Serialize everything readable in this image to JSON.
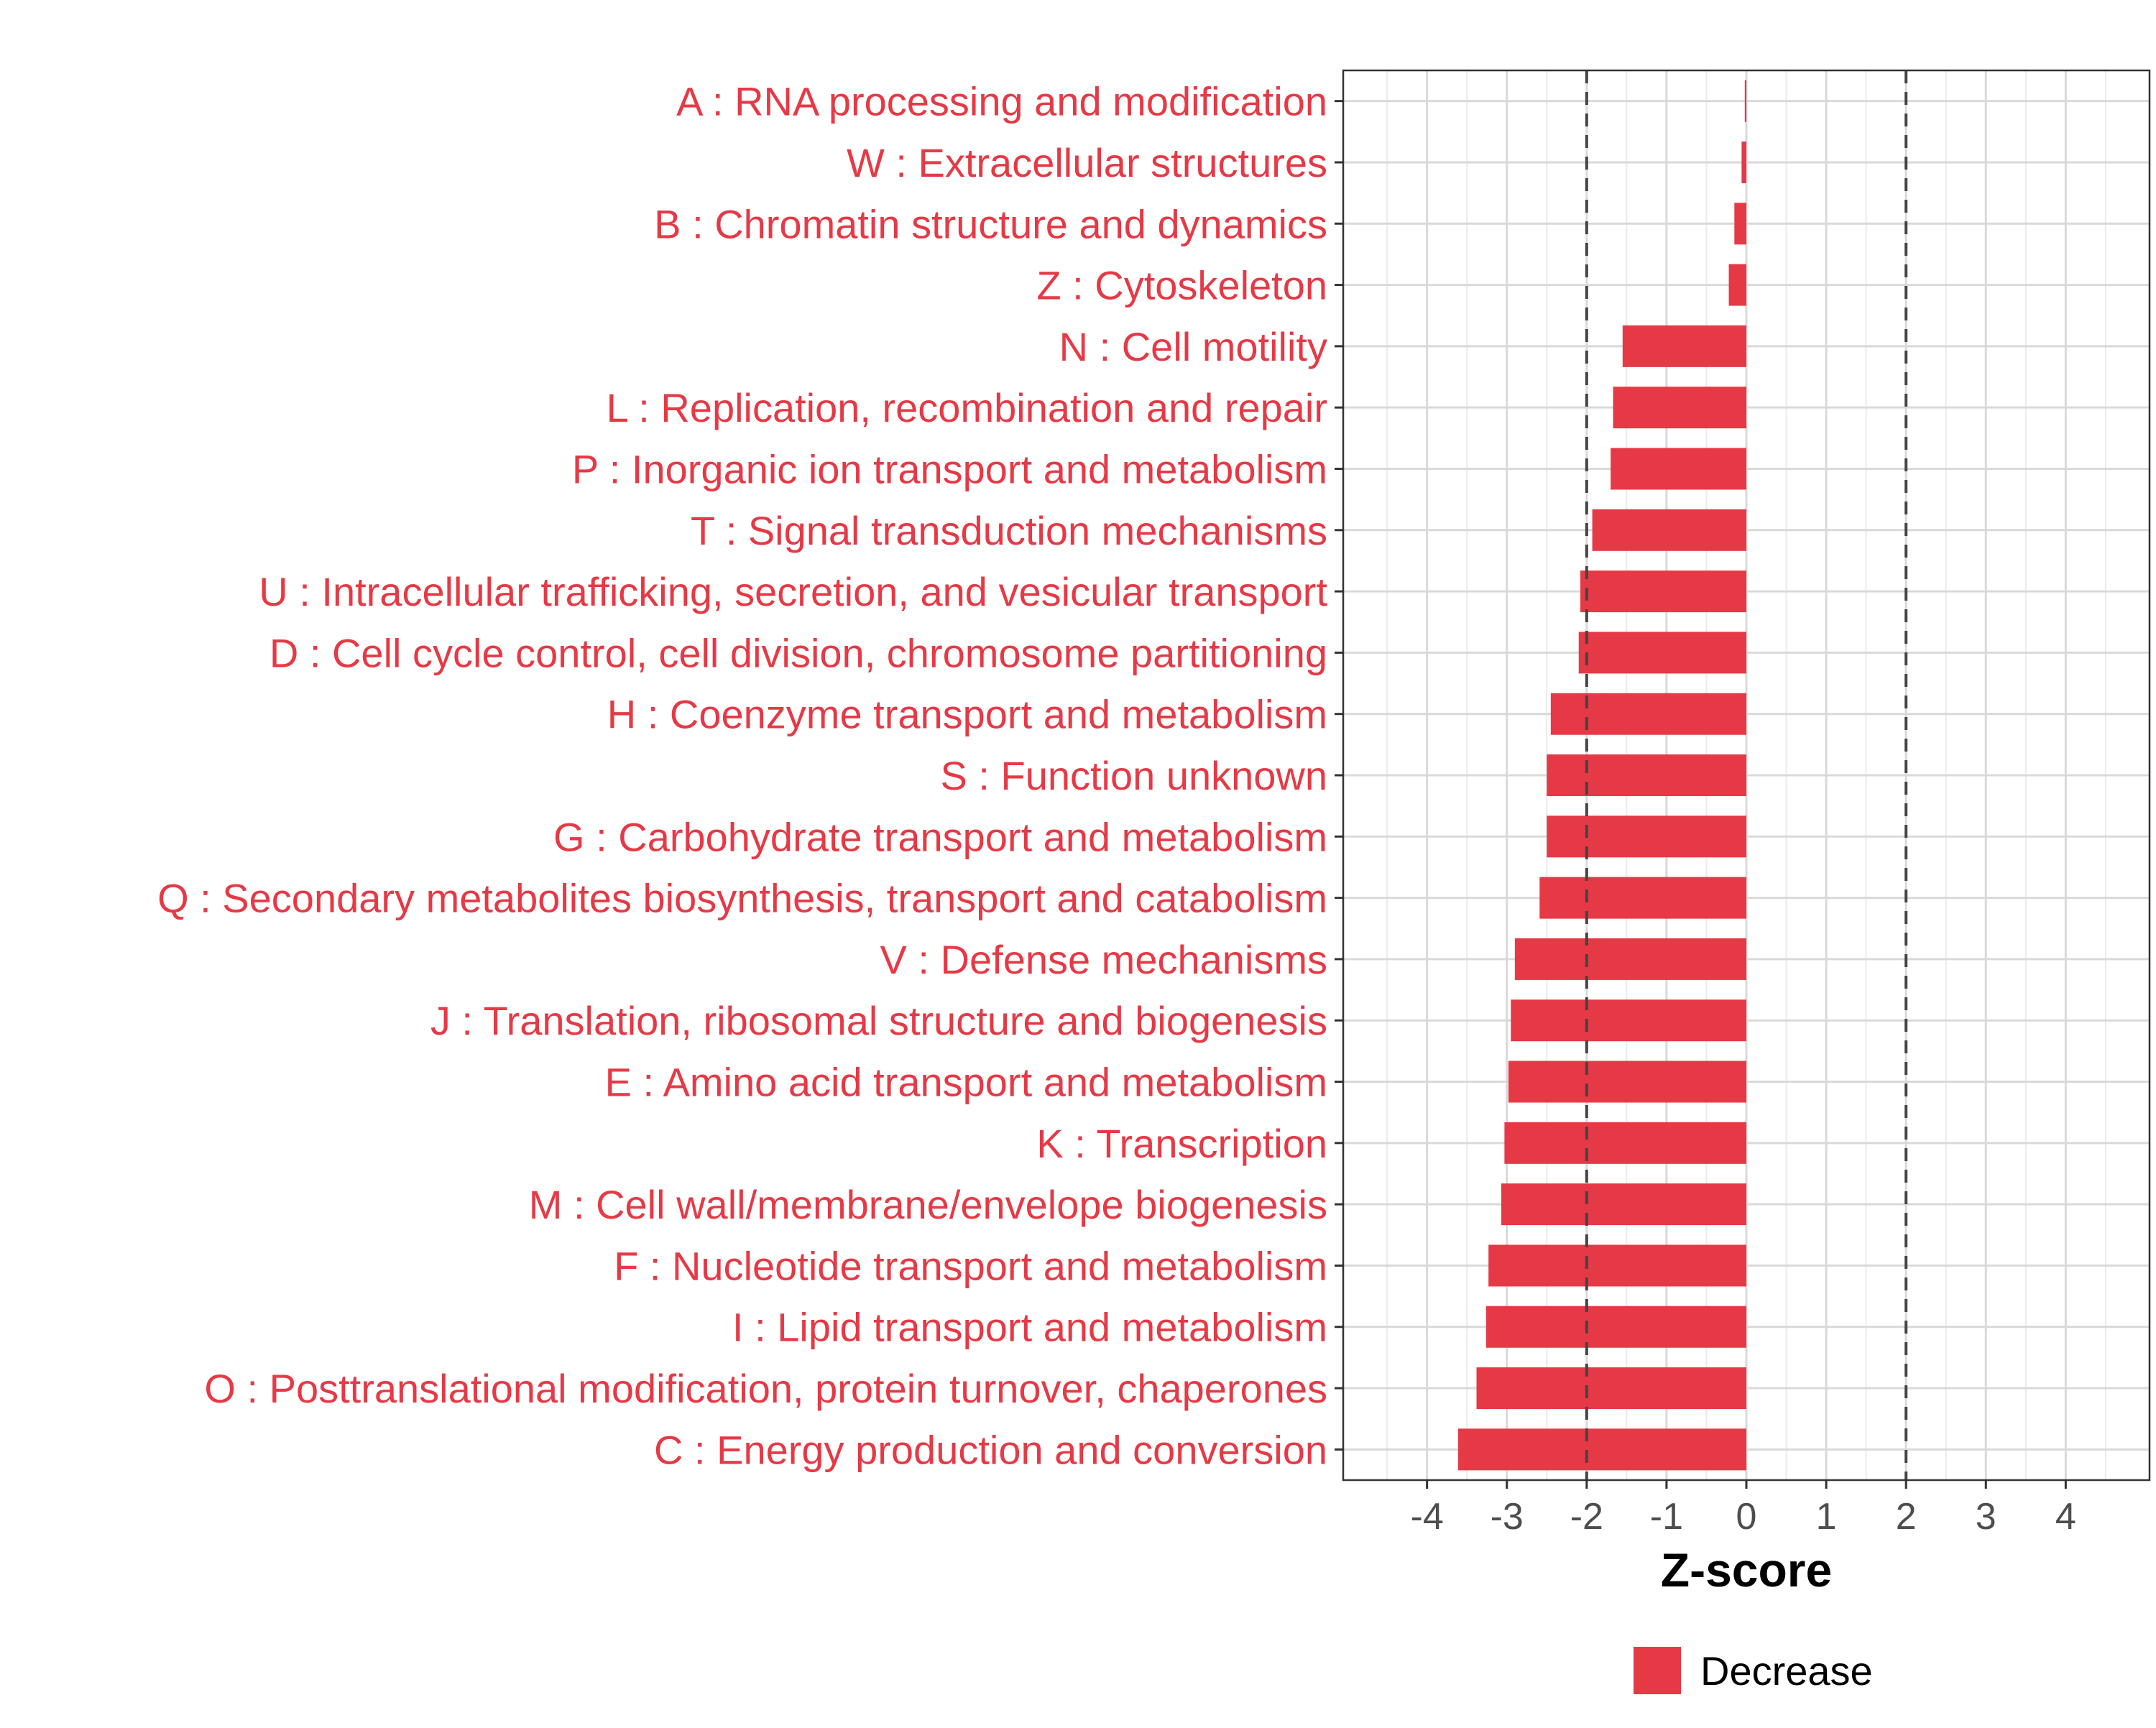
{
  "chart_data": {
    "type": "bar",
    "orientation": "horizontal",
    "categories": [
      "A : RNA processing and modification",
      "W : Extracellular structures",
      "B : Chromatin structure and dynamics",
      "Z : Cytoskeleton",
      "N : Cell motility",
      "L : Replication, recombination and repair",
      "P : Inorganic ion transport and metabolism",
      "T : Signal transduction mechanisms",
      "U : Intracellular trafficking, secretion, and vesicular transport",
      "D : Cell cycle control, cell division, chromosome partitioning",
      "H : Coenzyme transport and metabolism",
      "S : Function unknown",
      "G : Carbohydrate transport and metabolism",
      "Q : Secondary metabolites biosynthesis, transport and catabolism",
      "V : Defense mechanisms",
      "J : Translation, ribosomal structure and biogenesis",
      "E : Amino acid transport and metabolism",
      "K : Transcription",
      "M : Cell wall/membrane/envelope biogenesis",
      "F : Nucleotide transport and metabolism",
      "I : Lipid transport and metabolism",
      "O : Posttranslational modification, protein turnover, chaperones",
      "C : Energy production and conversion"
    ],
    "series": [
      {
        "name": "Decrease",
        "color": "#e63946",
        "values": [
          -0.02,
          -0.06,
          -0.15,
          -0.22,
          -1.55,
          -1.67,
          -1.7,
          -1.93,
          -2.08,
          -2.1,
          -2.45,
          -2.5,
          -2.5,
          -2.59,
          -2.9,
          -2.95,
          -2.98,
          -3.03,
          -3.07,
          -3.23,
          -3.26,
          -3.38,
          -3.61
        ]
      }
    ],
    "xlabel": "Z-score",
    "ylabel": "",
    "xlim": [
      -5.05,
      5.05
    ],
    "xticks": [
      -4,
      -3,
      -2,
      -1,
      0,
      1,
      2,
      3,
      4
    ],
    "xtick_labels": [
      "-4",
      "-3",
      "-2",
      "-1",
      "0",
      "1",
      "2",
      "3",
      "4"
    ],
    "reference_lines": [
      -2,
      2
    ],
    "grid": true,
    "legend_position": "bottom",
    "label_color": "#e63946"
  }
}
